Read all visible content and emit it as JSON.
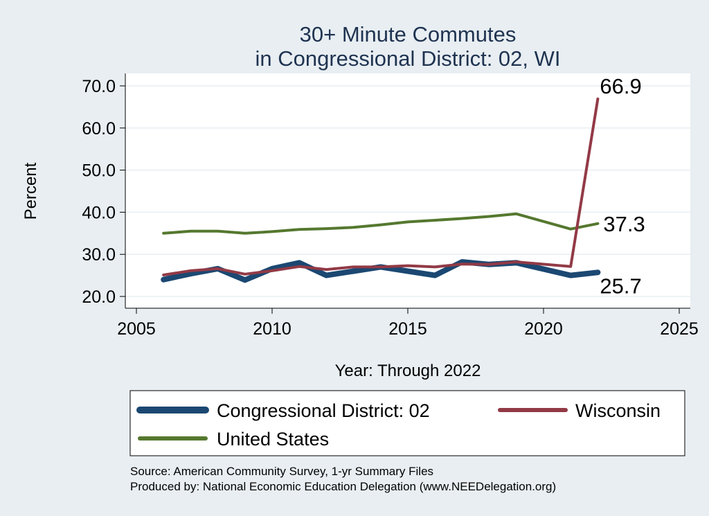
{
  "chart_data": {
    "type": "line",
    "title": [
      "30+ Minute Commutes",
      "in Congressional District:  02, WI"
    ],
    "xlabel": "Year: Through 2022",
    "ylabel": "Percent",
    "xlim": [
      2005,
      2025
    ],
    "ylim": [
      20,
      70
    ],
    "xticks": [
      2005,
      2010,
      2015,
      2020,
      2025
    ],
    "yticks": [
      20,
      30,
      40,
      50,
      60,
      70
    ],
    "ytick_labels": [
      "20.0",
      "30.0",
      "40.0",
      "50.0",
      "60.0",
      "70.0"
    ],
    "grid": true,
    "legend_position": "bottom",
    "x": [
      2006,
      2007,
      2008,
      2009,
      2010,
      2011,
      2012,
      2013,
      2014,
      2015,
      2016,
      2017,
      2018,
      2019,
      2021,
      2022
    ],
    "series": [
      {
        "name": "Congressional District:  02",
        "color": "#1b4872",
        "line_width": 8,
        "values": [
          24.0,
          25.4,
          26.6,
          23.9,
          26.6,
          28.0,
          25.0,
          26.0,
          27.0,
          26.0,
          25.0,
          28.2,
          27.6,
          28.0,
          25.0,
          25.7
        ],
        "end_label": "25.7"
      },
      {
        "name": "Wisconsin",
        "color": "#923a46",
        "line_width": 4,
        "values": [
          25.1,
          26.1,
          26.6,
          25.3,
          26.1,
          27.1,
          26.4,
          27.0,
          27.0,
          27.3,
          27.0,
          27.7,
          27.6,
          28.2,
          27.1,
          66.9
        ],
        "end_label": "66.9"
      },
      {
        "name": "United States",
        "color": "#55782f",
        "line_width": 4,
        "values": [
          35.0,
          35.5,
          35.5,
          35.0,
          35.4,
          35.9,
          36.1,
          36.4,
          37.0,
          37.7,
          38.1,
          38.5,
          39.0,
          39.6,
          36.0,
          37.3
        ],
        "end_label": "37.3"
      }
    ],
    "legend": [
      "Congressional District:  02",
      "Wisconsin",
      "United States"
    ],
    "source_notes": [
      "Source: American Community Survey, 1-yr Summary Files",
      "Produced by: National Economic Education Delegation (www.NEEDelegation.org)"
    ]
  }
}
